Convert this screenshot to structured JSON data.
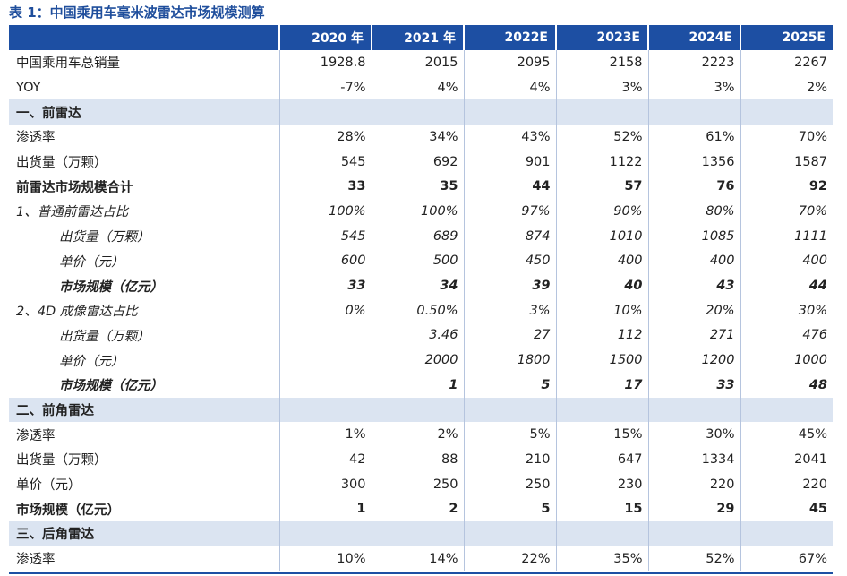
{
  "title": "表 1：中国乘用车毫米波雷达市场规模测算",
  "columns": [
    "",
    "2020 年",
    "2021 年",
    "2022E",
    "2023E",
    "2024E",
    "2025E"
  ],
  "colors": {
    "header_bg": "#1d4fa3",
    "title_text": "#1f4e9c",
    "section_bg": "#dbe4f1"
  },
  "rows": [
    {
      "label": "中国乘用车总销量",
      "style": "normal",
      "values": [
        "1928.8",
        "2015",
        "2095",
        "2158",
        "2223",
        "2267"
      ]
    },
    {
      "label": "YOY",
      "style": "normal",
      "values": [
        "-7%",
        "4%",
        "4%",
        "3%",
        "3%",
        "2%"
      ]
    },
    {
      "label": "一、前雷达",
      "style": "section",
      "values": [
        "",
        "",
        "",
        "",
        "",
        ""
      ]
    },
    {
      "label": "渗透率",
      "style": "normal",
      "values": [
        "28%",
        "34%",
        "43%",
        "52%",
        "61%",
        "70%"
      ]
    },
    {
      "label": "出货量（万颗）",
      "style": "normal",
      "values": [
        "545",
        "692",
        "901",
        "1122",
        "1356",
        "1587"
      ]
    },
    {
      "label": "前雷达市场规模合计",
      "style": "bold",
      "values": [
        "33",
        "35",
        "44",
        "57",
        "76",
        "92"
      ]
    },
    {
      "label": "1、普通前雷达占比",
      "style": "italic ind1",
      "values": [
        "100%",
        "100%",
        "97%",
        "90%",
        "80%",
        "70%"
      ]
    },
    {
      "label": "出货量（万颗）",
      "style": "italic ind2",
      "values": [
        "545",
        "689",
        "874",
        "1010",
        "1085",
        "1111"
      ]
    },
    {
      "label": "单价（元）",
      "style": "italic ind2",
      "values": [
        "600",
        "500",
        "450",
        "400",
        "400",
        "400"
      ]
    },
    {
      "label": "市场规模（亿元）",
      "style": "italic bold ind2",
      "values": [
        "33",
        "34",
        "39",
        "40",
        "43",
        "44"
      ]
    },
    {
      "label": "2、4D 成像雷达占比",
      "style": "italic ind1",
      "values": [
        "0%",
        "0.50%",
        "3%",
        "10%",
        "20%",
        "30%"
      ]
    },
    {
      "label": "出货量（万颗）",
      "style": "italic ind2",
      "values": [
        "",
        "3.46",
        "27",
        "112",
        "271",
        "476"
      ]
    },
    {
      "label": "单价（元）",
      "style": "italic ind2",
      "values": [
        "",
        "2000",
        "1800",
        "1500",
        "1200",
        "1000"
      ]
    },
    {
      "label": "市场规模（亿元）",
      "style": "italic bold ind2",
      "values": [
        "",
        "1",
        "5",
        "17",
        "33",
        "48"
      ]
    },
    {
      "label": "二、前角雷达",
      "style": "section",
      "values": [
        "",
        "",
        "",
        "",
        "",
        ""
      ]
    },
    {
      "label": "渗透率",
      "style": "normal",
      "values": [
        "1%",
        "2%",
        "5%",
        "15%",
        "30%",
        "45%"
      ]
    },
    {
      "label": "出货量（万颗）",
      "style": "normal",
      "values": [
        "42",
        "88",
        "210",
        "647",
        "1334",
        "2041"
      ]
    },
    {
      "label": "单价（元）",
      "style": "normal",
      "values": [
        "300",
        "250",
        "250",
        "230",
        "220",
        "220"
      ]
    },
    {
      "label": "市场规模（亿元）",
      "style": "bold",
      "values": [
        "1",
        "2",
        "5",
        "15",
        "29",
        "45"
      ]
    },
    {
      "label": "三、后角雷达",
      "style": "section",
      "values": [
        "",
        "",
        "",
        "",
        "",
        ""
      ]
    },
    {
      "label": "渗透率",
      "style": "normal",
      "values": [
        "10%",
        "14%",
        "22%",
        "35%",
        "52%",
        "67%"
      ]
    }
  ]
}
